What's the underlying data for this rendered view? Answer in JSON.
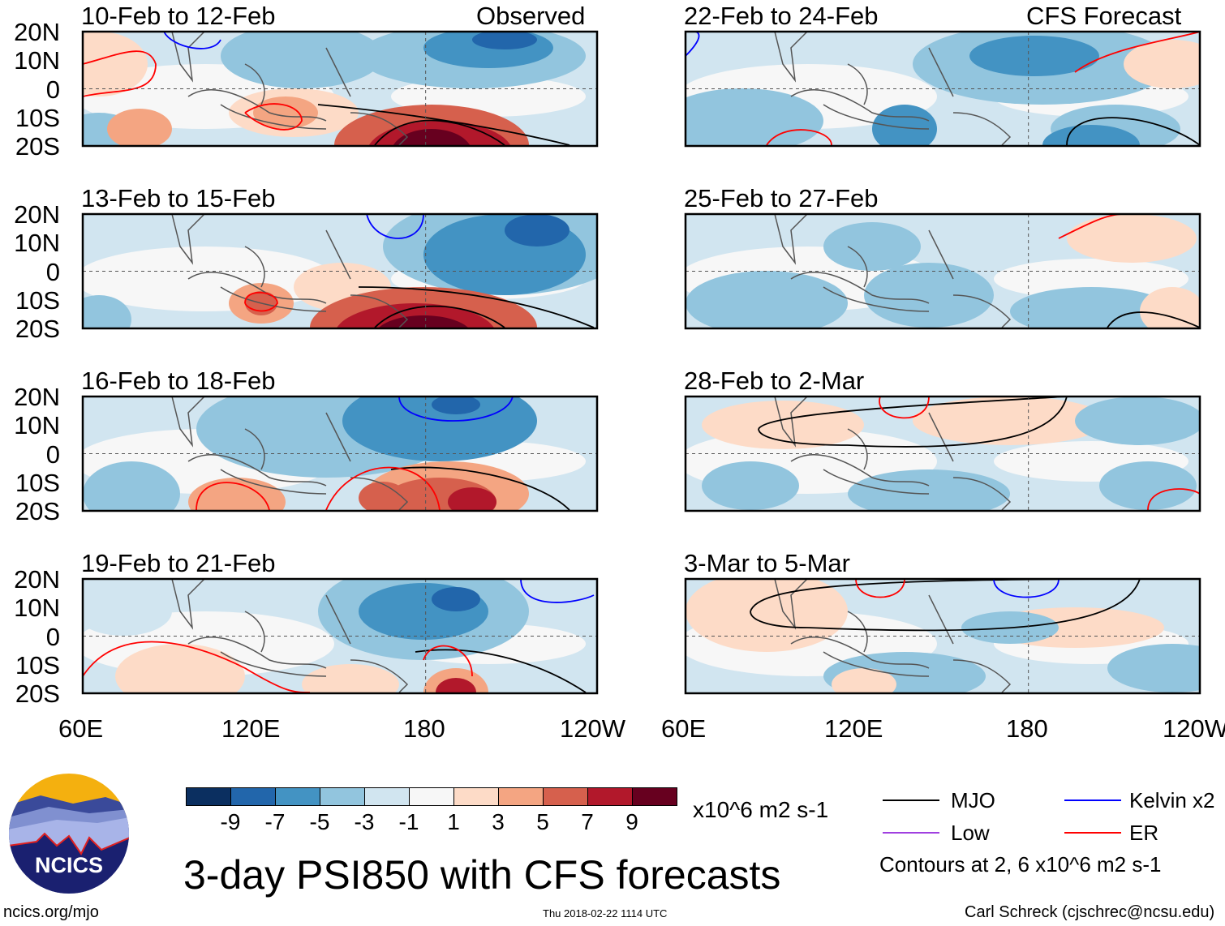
{
  "chart_data": {
    "type": "heatmap",
    "title": "3-day PSI850 with CFS forecasts",
    "variable": "PSI850 anomaly",
    "units": "x10^6 m2 s-1",
    "columns": [
      {
        "header": "Observed",
        "panels": [
          "10-Feb to 12-Feb",
          "13-Feb to 15-Feb",
          "16-Feb to 18-Feb",
          "19-Feb to 21-Feb"
        ]
      },
      {
        "header": "CFS Forecast",
        "panels": [
          "22-Feb to 24-Feb",
          "25-Feb to 27-Feb",
          "28-Feb to 2-Mar",
          "3-Mar to 5-Mar"
        ]
      }
    ],
    "y_ticks": [
      "20N",
      "10N",
      "0",
      "10S",
      "20S"
    ],
    "x_ticks": [
      "60E",
      "120E",
      "180",
      "120W"
    ],
    "colorbar": {
      "labels": [
        "-9",
        "-7",
        "-5",
        "-3",
        "-1",
        "1",
        "3",
        "5",
        "7",
        "9"
      ],
      "colors": [
        "#0b2f60",
        "#2266ab",
        "#4393c3",
        "#92c5de",
        "#d1e5f0",
        "#f7f7f7",
        "#fddbc7",
        "#f4a582",
        "#d6604d",
        "#b2182b",
        "#67001f"
      ]
    },
    "legend": [
      {
        "label": "MJO",
        "color": "#000000"
      },
      {
        "label": "Kelvin x2",
        "color": "#0000ff"
      },
      {
        "label": "Low",
        "color": "#a040e0"
      },
      {
        "label": "ER",
        "color": "#ff0000"
      }
    ],
    "contour_note": "Contours at 2, 6 x10^6 m2 s-1"
  },
  "footer": {
    "logo_text": "NCICS",
    "url": "ncics.org/mjo",
    "timestamp": "Thu 2018-02-22 1114 UTC",
    "credit": "Carl Schreck (cjschrec@ncsu.edu)"
  }
}
